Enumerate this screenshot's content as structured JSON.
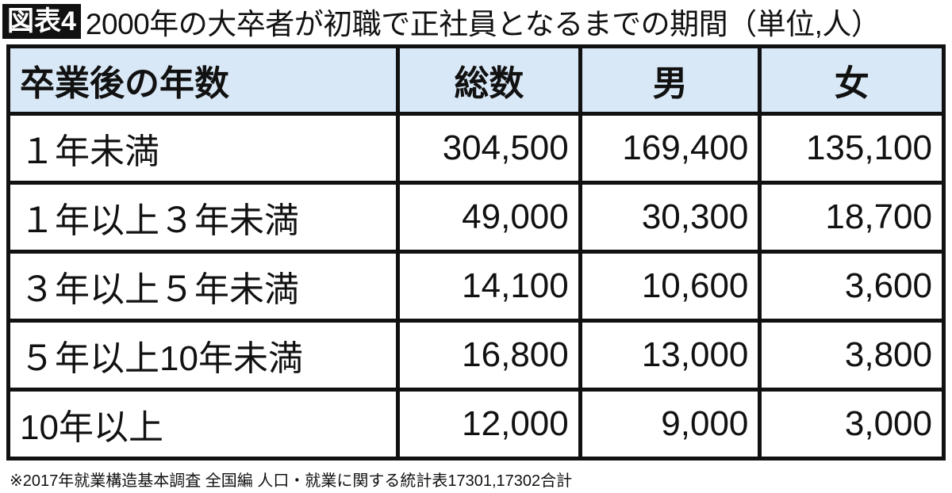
{
  "figure_label": "図表4",
  "title": "2000年の大卒者が初職で正社員となるまでの期間（単位,人）",
  "table": {
    "headers": [
      "卒業後の年数",
      "総数",
      "男",
      "女"
    ],
    "rows": [
      [
        "１年未満",
        "304,500",
        "169,400",
        "135,100"
      ],
      [
        "１年以上３年未満",
        "49,000",
        "30,300",
        "18,700"
      ],
      [
        "３年以上５年未満",
        "14,100",
        "10,600",
        "3,600"
      ],
      [
        "５年以上10年未満",
        "16,800",
        "13,000",
        "3,800"
      ],
      [
        "10年以上",
        "12,000",
        "9,000",
        "3,000"
      ]
    ]
  },
  "note": "※2017年就業構造基本調査 全国編 人口・就業に関する統計表17301,17302合計",
  "colors": {
    "header_bg": "#d9e8f6",
    "border": "#111111"
  }
}
